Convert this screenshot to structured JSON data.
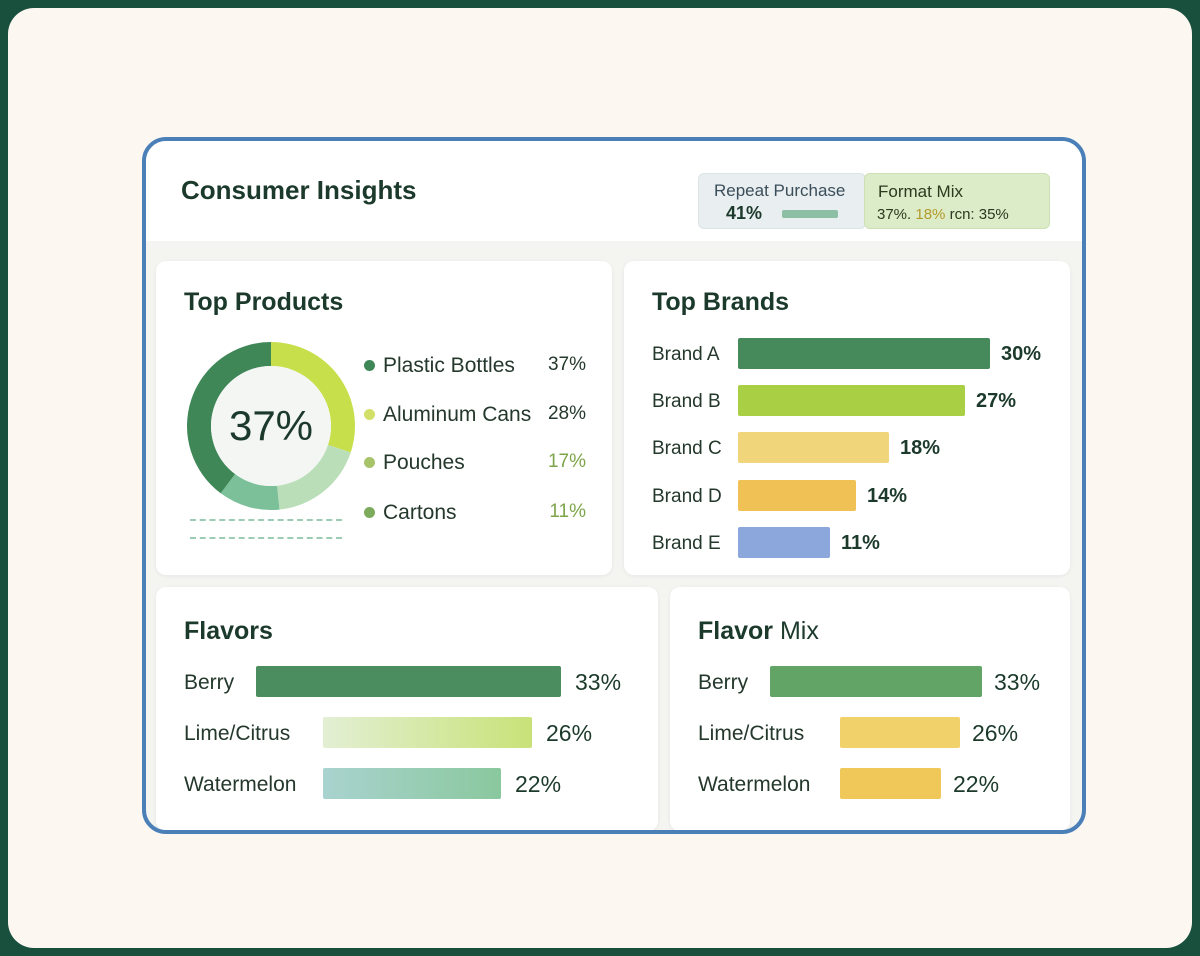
{
  "app": {
    "title": "Consumer Insights"
  },
  "kpis": {
    "repeat_purchase": {
      "label": "Repeat Purchase",
      "value": "41%",
      "fill": 0.41,
      "color": "#8dbfa5"
    },
    "format_mix": {
      "label": "Format Mix",
      "part1": "37%.",
      "part2": "18%",
      "part3": "rcn: 35%"
    }
  },
  "top_products": {
    "title": "Top Products",
    "center_value": "37%",
    "items": [
      {
        "name": "Plastic Bottles",
        "value": "37%",
        "share": 37,
        "color": "#3f8757"
      },
      {
        "name": "Aluminum Cans",
        "value": "28%",
        "share": 28,
        "color": "#c8df4c"
      },
      {
        "name": "Pouches",
        "value": "17%",
        "share": 17,
        "color": "#b9deb8"
      },
      {
        "name": "Cartons",
        "value": "11%",
        "share": 11,
        "color": "#7cc09a"
      }
    ],
    "legend_dot_colors": [
      "#3f8757",
      "#d2e06a",
      "#a8c46a",
      "#7cab5c"
    ],
    "value_colors": [
      "#24382c",
      "#24382c",
      "#7ea54a",
      "#7ea54a"
    ]
  },
  "top_brands": {
    "title": "Top Brands",
    "items": [
      {
        "label": "Brand A",
        "value": "30%",
        "percent": 30,
        "color": "#468a5b"
      },
      {
        "label": "Brand B",
        "value": "27%",
        "percent": 27,
        "color": "#a9cf45"
      },
      {
        "label": "Brand C",
        "value": "18%",
        "percent": 18,
        "color": "#f1d57a"
      },
      {
        "label": "Brand D",
        "value": "14%",
        "percent": 14,
        "color": "#f0c255"
      },
      {
        "label": "Brand E",
        "value": "11%",
        "percent": 11,
        "color": "#8ca7dc"
      }
    ]
  },
  "flavors": {
    "title": "Flavors",
    "items": [
      {
        "label": "Berry",
        "value": "33%",
        "percent": 33,
        "gradient": [
          "#4b8d5e",
          "#4b8d5e"
        ]
      },
      {
        "label": "Lime/Citrus",
        "value": "26%",
        "percent": 26,
        "gradient": [
          "#e3efd4",
          "#c9e278"
        ]
      },
      {
        "label": "Watermelon",
        "value": "22%",
        "percent": 22,
        "gradient": [
          "#a9d3cf",
          "#8ac89e"
        ]
      }
    ]
  },
  "flavor_mix": {
    "title_bold": "Flavor",
    "title_light": "Mix",
    "items": [
      {
        "label": "Berry",
        "value": "33%",
        "percent": 33,
        "color": "#62a465"
      },
      {
        "label": "Lime/Citrus",
        "value": "26%",
        "percent": 26,
        "color": "#f1d16a"
      },
      {
        "label": "Watermelon",
        "value": "22%",
        "percent": 22,
        "color": "#f0c85a"
      }
    ]
  }
}
